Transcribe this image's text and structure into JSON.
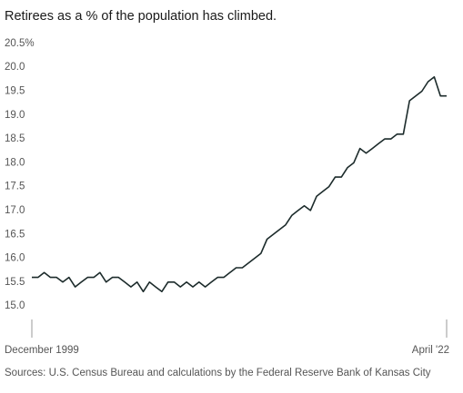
{
  "chart_data": {
    "type": "line",
    "title": "Retirees as a % of the population has climbed.",
    "source": "Sources: U.S. Census Bureau and calculations by the Federal Reserve Bank of Kansas City",
    "categories": [
      "December 1999",
      null,
      null,
      null,
      null,
      null,
      null,
      null,
      null,
      null,
      null,
      null,
      null,
      null,
      null,
      null,
      null,
      null,
      null,
      null,
      null,
      null,
      null,
      null,
      null,
      null,
      null,
      null,
      null,
      null,
      null,
      null,
      null,
      null,
      null,
      null,
      null,
      null,
      null,
      null,
      null,
      null,
      null,
      null,
      null,
      null,
      null,
      null,
      null,
      null,
      null,
      null,
      null,
      null,
      null,
      null,
      null,
      null,
      null,
      null,
      null,
      null,
      null,
      null,
      null,
      null,
      null,
      "April '22"
    ],
    "series": [
      {
        "color": "#1c2b2b",
        "values": [
          15.6,
          15.6,
          15.7,
          15.6,
          15.6,
          15.5,
          15.6,
          15.4,
          15.5,
          15.6,
          15.6,
          15.7,
          15.5,
          15.6,
          15.6,
          15.5,
          15.4,
          15.5,
          15.3,
          15.5,
          15.4,
          15.3,
          15.5,
          15.5,
          15.4,
          15.5,
          15.4,
          15.5,
          15.4,
          15.5,
          15.6,
          15.6,
          15.7,
          15.8,
          15.8,
          15.9,
          16.0,
          16.1,
          16.4,
          16.5,
          16.6,
          16.7,
          16.9,
          17.0,
          17.1,
          17.0,
          17.3,
          17.4,
          17.5,
          17.7,
          17.7,
          17.9,
          18.0,
          18.3,
          18.2,
          18.3,
          18.4,
          18.5,
          18.5,
          18.6,
          18.6,
          19.3,
          19.4,
          19.5,
          19.7,
          19.8,
          19.4,
          19.4
        ]
      }
    ],
    "ylim": [
      14.85,
      20.65
    ],
    "yticks": [
      {
        "value": 15,
        "label": "15.0"
      },
      15.5,
      {
        "value": 16,
        "label": "16.0"
      },
      16.5,
      {
        "value": 17,
        "label": "17.0"
      },
      17.5,
      {
        "value": 18,
        "label": "18.0"
      },
      18.5,
      {
        "value": 19,
        "label": "19.0"
      },
      19.5,
      {
        "value": 20,
        "label": "20.0"
      },
      {
        "value": 20.5,
        "label": "20.5%"
      }
    ],
    "grid": false
  }
}
